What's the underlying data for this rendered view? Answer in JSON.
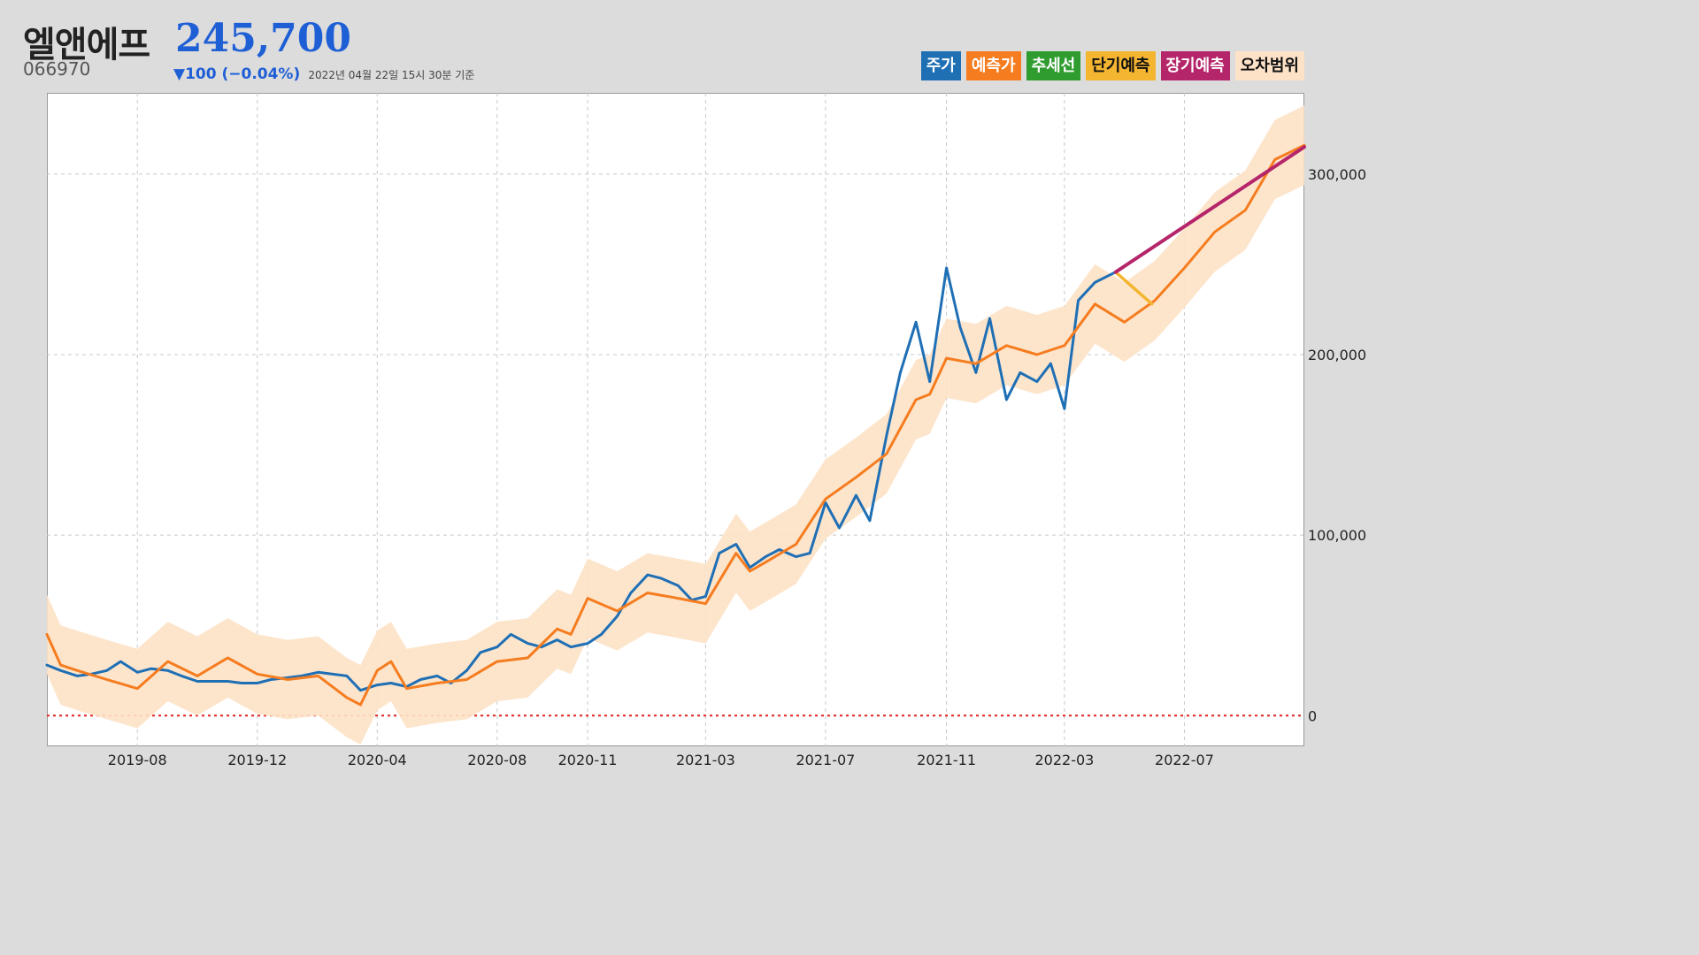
{
  "header": {
    "name": "엘앤에프",
    "code": "066970",
    "price": "245,700",
    "change": "▼100 (−0.04%)",
    "as_of": "2022년 04월 22일 15시 30분 기준"
  },
  "legend": [
    {
      "label": "주가",
      "color": "#1f6fb5",
      "text_color": "#ffffff"
    },
    {
      "label": "예측가",
      "color": "#f57c1f",
      "text_color": "#ffffff"
    },
    {
      "label": "추세선",
      "color": "#2e9c2e",
      "text_color": "#ffffff"
    },
    {
      "label": "단기예측",
      "color": "#f4b531",
      "text_color": "#111111"
    },
    {
      "label": "장기예측",
      "color": "#b5256a",
      "text_color": "#ffffff"
    },
    {
      "label": "오차범위",
      "color": "#fde2c7",
      "text_color": "#111111"
    }
  ],
  "chart_data": {
    "type": "line",
    "x_range": [
      "2019-05-01",
      "2022-10-31"
    ],
    "y_range": [
      -17000,
      345000
    ],
    "y_ticks": [
      {
        "value": 0,
        "label": "0"
      },
      {
        "value": 100000,
        "label": "100,000"
      },
      {
        "value": 200000,
        "label": "200,000"
      },
      {
        "value": 300000,
        "label": "300,000"
      }
    ],
    "x_ticks": [
      {
        "date": "2019-08-01",
        "label": "2019-08"
      },
      {
        "date": "2019-12-01",
        "label": "2019-12"
      },
      {
        "date": "2020-04-01",
        "label": "2020-04"
      },
      {
        "date": "2020-08-01",
        "label": "2020-08"
      },
      {
        "date": "2020-11-01",
        "label": "2020-11"
      },
      {
        "date": "2021-03-01",
        "label": "2021-03"
      },
      {
        "date": "2021-07-01",
        "label": "2021-07"
      },
      {
        "date": "2021-11-01",
        "label": "2021-11"
      },
      {
        "date": "2022-03-01",
        "label": "2022-03"
      },
      {
        "date": "2022-07-01",
        "label": "2022-07"
      }
    ],
    "grid": true,
    "reference_line": {
      "value": 0,
      "color": "#e02020",
      "style": "dotted"
    },
    "error_band_width": 22000,
    "series": [
      {
        "name": "주가",
        "color": "#1f6fb5",
        "points": [
          [
            "2019-05-01",
            28000
          ],
          [
            "2019-05-15",
            25000
          ],
          [
            "2019-06-01",
            22000
          ],
          [
            "2019-06-15",
            23000
          ],
          [
            "2019-07-01",
            25000
          ],
          [
            "2019-07-15",
            30000
          ],
          [
            "2019-08-01",
            24000
          ],
          [
            "2019-08-15",
            26000
          ],
          [
            "2019-09-01",
            25000
          ],
          [
            "2019-09-15",
            22000
          ],
          [
            "2019-10-01",
            19000
          ],
          [
            "2019-10-15",
            19000
          ],
          [
            "2019-11-01",
            19000
          ],
          [
            "2019-11-15",
            18000
          ],
          [
            "2019-12-01",
            18000
          ],
          [
            "2019-12-15",
            20000
          ],
          [
            "2020-01-01",
            21000
          ],
          [
            "2020-01-15",
            22000
          ],
          [
            "2020-02-01",
            24000
          ],
          [
            "2020-02-15",
            23000
          ],
          [
            "2020-03-01",
            22000
          ],
          [
            "2020-03-15",
            14000
          ],
          [
            "2020-04-01",
            17000
          ],
          [
            "2020-04-15",
            18000
          ],
          [
            "2020-05-01",
            16000
          ],
          [
            "2020-05-15",
            20000
          ],
          [
            "2020-06-01",
            22000
          ],
          [
            "2020-06-15",
            18000
          ],
          [
            "2020-07-01",
            25000
          ],
          [
            "2020-07-15",
            35000
          ],
          [
            "2020-08-01",
            38000
          ],
          [
            "2020-08-15",
            45000
          ],
          [
            "2020-09-01",
            40000
          ],
          [
            "2020-09-15",
            38000
          ],
          [
            "2020-10-01",
            42000
          ],
          [
            "2020-10-15",
            38000
          ],
          [
            "2020-11-01",
            40000
          ],
          [
            "2020-11-15",
            45000
          ],
          [
            "2020-12-01",
            55000
          ],
          [
            "2020-12-15",
            68000
          ],
          [
            "2021-01-01",
            78000
          ],
          [
            "2021-01-15",
            76000
          ],
          [
            "2021-02-01",
            72000
          ],
          [
            "2021-02-15",
            64000
          ],
          [
            "2021-03-01",
            66000
          ],
          [
            "2021-03-15",
            90000
          ],
          [
            "2021-04-01",
            95000
          ],
          [
            "2021-04-15",
            82000
          ],
          [
            "2021-05-01",
            88000
          ],
          [
            "2021-05-15",
            92000
          ],
          [
            "2021-06-01",
            88000
          ],
          [
            "2021-06-15",
            90000
          ],
          [
            "2021-07-01",
            118000
          ],
          [
            "2021-07-15",
            104000
          ],
          [
            "2021-08-01",
            122000
          ],
          [
            "2021-08-15",
            108000
          ],
          [
            "2021-09-01",
            155000
          ],
          [
            "2021-09-15",
            190000
          ],
          [
            "2021-10-01",
            218000
          ],
          [
            "2021-10-15",
            185000
          ],
          [
            "2021-11-01",
            248000
          ],
          [
            "2021-11-15",
            215000
          ],
          [
            "2021-12-01",
            190000
          ],
          [
            "2021-12-15",
            220000
          ],
          [
            "2022-01-01",
            175000
          ],
          [
            "2022-01-15",
            190000
          ],
          [
            "2022-02-01",
            185000
          ],
          [
            "2022-02-15",
            195000
          ],
          [
            "2022-03-01",
            170000
          ],
          [
            "2022-03-15",
            230000
          ],
          [
            "2022-04-01",
            240000
          ],
          [
            "2022-04-22",
            245700
          ]
        ]
      },
      {
        "name": "예측가",
        "color": "#f57c1f",
        "points": [
          [
            "2019-05-01",
            45000
          ],
          [
            "2019-05-15",
            28000
          ],
          [
            "2019-06-01",
            25000
          ],
          [
            "2019-07-01",
            20000
          ],
          [
            "2019-08-01",
            15000
          ],
          [
            "2019-09-01",
            30000
          ],
          [
            "2019-10-01",
            22000
          ],
          [
            "2019-11-01",
            32000
          ],
          [
            "2019-12-01",
            23000
          ],
          [
            "2020-01-01",
            20000
          ],
          [
            "2020-02-01",
            22000
          ],
          [
            "2020-03-01",
            10000
          ],
          [
            "2020-03-15",
            6000
          ],
          [
            "2020-04-01",
            25000
          ],
          [
            "2020-04-15",
            30000
          ],
          [
            "2020-05-01",
            15000
          ],
          [
            "2020-06-01",
            18000
          ],
          [
            "2020-07-01",
            20000
          ],
          [
            "2020-08-01",
            30000
          ],
          [
            "2020-09-01",
            32000
          ],
          [
            "2020-10-01",
            48000
          ],
          [
            "2020-10-15",
            45000
          ],
          [
            "2020-11-01",
            65000
          ],
          [
            "2020-12-01",
            58000
          ],
          [
            "2021-01-01",
            68000
          ],
          [
            "2021-02-01",
            65000
          ],
          [
            "2021-03-01",
            62000
          ],
          [
            "2021-04-01",
            90000
          ],
          [
            "2021-04-15",
            80000
          ],
          [
            "2021-05-01",
            85000
          ],
          [
            "2021-06-01",
            95000
          ],
          [
            "2021-07-01",
            120000
          ],
          [
            "2021-08-01",
            132000
          ],
          [
            "2021-09-01",
            145000
          ],
          [
            "2021-10-01",
            175000
          ],
          [
            "2021-10-15",
            178000
          ],
          [
            "2021-11-01",
            198000
          ],
          [
            "2021-12-01",
            195000
          ],
          [
            "2022-01-01",
            205000
          ],
          [
            "2022-02-01",
            200000
          ],
          [
            "2022-03-01",
            205000
          ],
          [
            "2022-04-01",
            228000
          ],
          [
            "2022-05-01",
            218000
          ],
          [
            "2022-06-01",
            230000
          ],
          [
            "2022-07-01",
            248000
          ],
          [
            "2022-08-01",
            268000
          ],
          [
            "2022-09-01",
            280000
          ],
          [
            "2022-10-01",
            308000
          ],
          [
            "2022-10-31",
            316000
          ]
        ]
      },
      {
        "name": "단기예측",
        "color": "#f4b531",
        "points": [
          [
            "2022-04-22",
            245700
          ],
          [
            "2022-05-29",
            228000
          ]
        ]
      },
      {
        "name": "장기예측",
        "color": "#b5256a",
        "points": [
          [
            "2022-04-22",
            245700
          ],
          [
            "2022-10-31",
            315000
          ]
        ]
      }
    ]
  }
}
